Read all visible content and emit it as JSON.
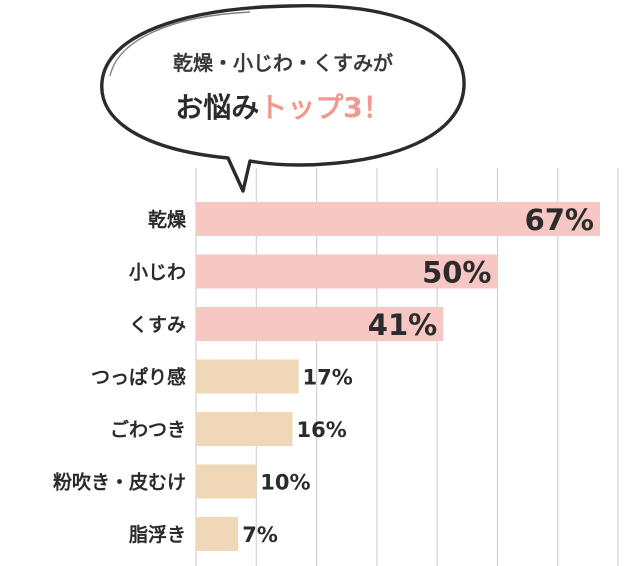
{
  "title": {
    "line1": "乾燥・小じわ・くすみが",
    "line2_dark": "お悩み",
    "line2_accent": "トップ3！"
  },
  "colors": {
    "highlight": "#f7c7c3",
    "normal": "#efd7b8",
    "accent_text": "#f09a8f",
    "grid": "#d2d2d2",
    "text": "#2b2b2b"
  },
  "chart_data": {
    "type": "bar",
    "orientation": "horizontal",
    "categories": [
      "乾燥",
      "小じわ",
      "くすみ",
      "つっぱり感",
      "ごわつき",
      "粉吹き・皮むけ",
      "脂浮き"
    ],
    "values": [
      67,
      50,
      41,
      17,
      16,
      10,
      7
    ],
    "value_labels": [
      "67%",
      "50%",
      "41%",
      "17%",
      "16%",
      "10%",
      "7%"
    ],
    "highlighted_top": 3,
    "xlim": [
      0,
      70
    ],
    "grid": true
  }
}
